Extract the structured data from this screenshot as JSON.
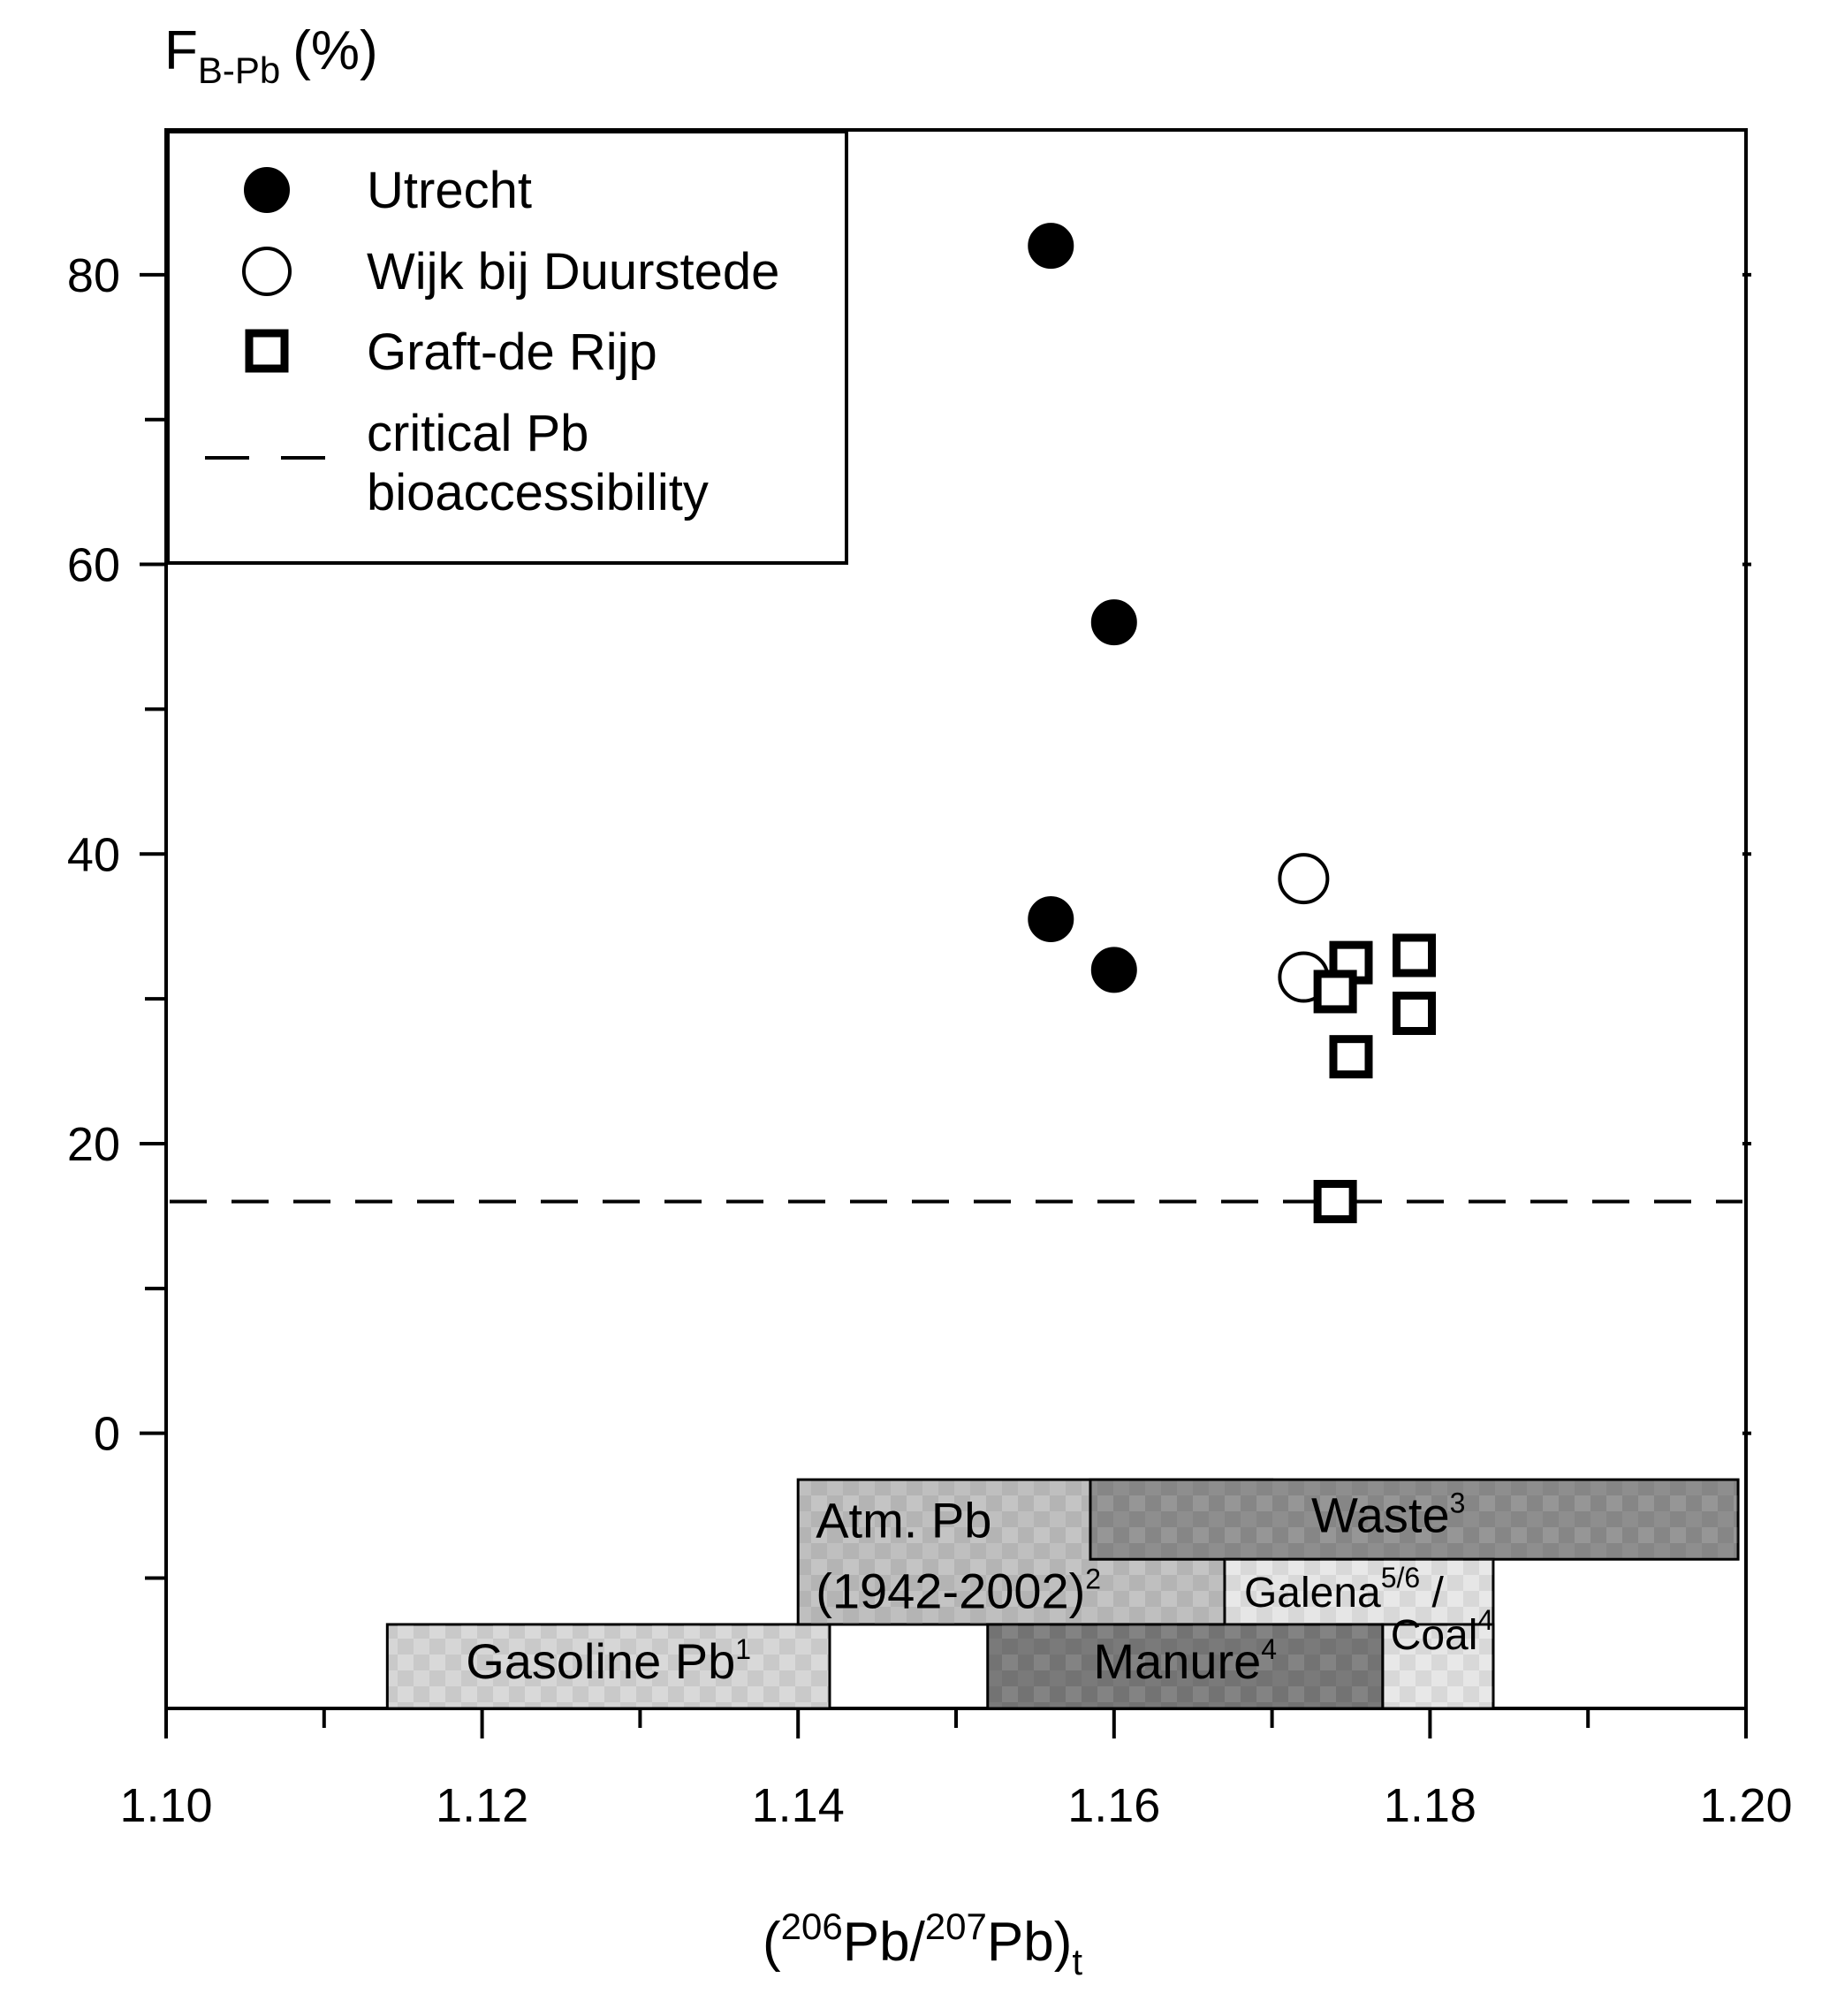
{
  "chart_data": {
    "type": "scatter",
    "ylabel": {
      "main": "F",
      "sub": "B-Pb",
      "unit": "(%)"
    },
    "xlabel": {
      "open": "(",
      "sup1": "206",
      "mid": "Pb/",
      "sup2": "207",
      "end": "Pb)",
      "sub": "t"
    },
    "xlim": [
      1.1,
      1.2
    ],
    "ylim": [
      -19,
      90
    ],
    "x_ticks": [
      "1.10",
      "1.12",
      "1.14",
      "1.16",
      "1.18",
      "1.20"
    ],
    "x_tick_values": [
      1.1,
      1.12,
      1.14,
      1.16,
      1.18,
      1.2
    ],
    "x_minor_step": 0.01,
    "y_ticks": [
      "0",
      "20",
      "40",
      "60",
      "80"
    ],
    "y_tick_values": [
      0,
      20,
      40,
      60,
      80
    ],
    "y_minor_step": 10,
    "legend_position": "top-left",
    "series": [
      {
        "name": "Utrecht",
        "marker": "filled-circle",
        "points": [
          [
            1.156,
            82.0
          ],
          [
            1.16,
            56.0
          ],
          [
            1.156,
            35.5
          ],
          [
            1.16,
            32.0
          ]
        ]
      },
      {
        "name": "Wijk bij Duurstede",
        "marker": "open-circle",
        "points": [
          [
            1.172,
            38.3
          ],
          [
            1.172,
            31.5
          ]
        ]
      },
      {
        "name": "Graft-de Rijp",
        "marker": "open-square",
        "points": [
          [
            1.175,
            32.5
          ],
          [
            1.174,
            30.5
          ],
          [
            1.179,
            33.0
          ],
          [
            1.179,
            29.0
          ],
          [
            1.175,
            26.0
          ],
          [
            1.174,
            16.0
          ]
        ]
      }
    ],
    "reference_line": {
      "name_line1": "critical Pb",
      "name_line2": "bioaccessibility",
      "y": 16,
      "style": "dashed"
    },
    "source_bands": [
      {
        "label": "Gasoline Pb",
        "sup": "1",
        "x": [
          1.114,
          1.142
        ],
        "y": [
          -19,
          -13.2
        ],
        "shade": "#d6d6d6"
      },
      {
        "label": "Atm. Pb",
        "label_line2": "(1942-2002)",
        "sup": "2",
        "x": [
          1.14,
          1.17
        ],
        "y": [
          -13.2,
          -3.2
        ],
        "shade": "#bfbfbf"
      },
      {
        "label": "Waste",
        "sup": "3",
        "x": [
          1.1585,
          1.1995
        ],
        "y": [
          -8.7,
          -3.2
        ],
        "shade": "#8e8e8e"
      },
      {
        "label": "Galena",
        "sup": "5/6",
        "suffix": " /",
        "x": [
          1.167,
          1.184
        ],
        "y": [
          -19,
          -8.7
        ],
        "shade": "#e6e6e6"
      },
      {
        "label": "Coal",
        "sup": "4",
        "x": [
          1.177,
          1.184
        ],
        "y": [
          -19,
          -13.2
        ],
        "shade": "#e6e6e6"
      },
      {
        "label": "Manure",
        "sup": "4",
        "x": [
          1.152,
          1.177
        ],
        "y": [
          -19,
          -13.2
        ],
        "shade": "#7a7a7a"
      }
    ]
  }
}
